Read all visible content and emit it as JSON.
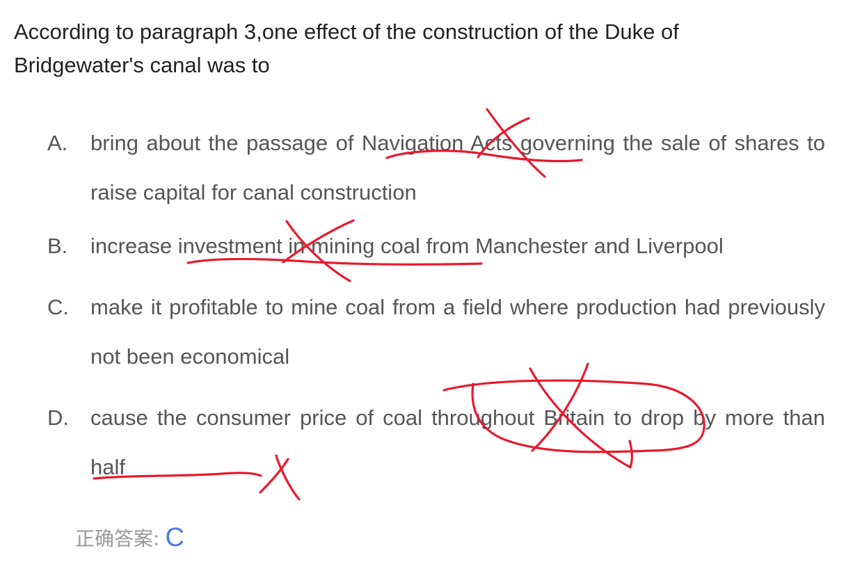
{
  "question": {
    "text": "According to paragraph 3,one effect of the construction of the Duke of Bridgewater's canal was to"
  },
  "options": [
    {
      "letter": "A.",
      "text": "bring about the passage of Navigation Acts governing the sale of shares to raise capital for canal construction"
    },
    {
      "letter": "B.",
      "text": "increase investment in mining coal from Manchester and Liverpool"
    },
    {
      "letter": "C.",
      "text": "make it profitable to mine coal from a field where production had previously not been economical"
    },
    {
      "letter": "D.",
      "text": "cause the consumer price of coal throughout Britain to drop by more than half"
    }
  ],
  "answer": {
    "label": "正确答案:",
    "value": "C"
  },
  "annotations": {
    "ink_color": "#e8192c"
  }
}
